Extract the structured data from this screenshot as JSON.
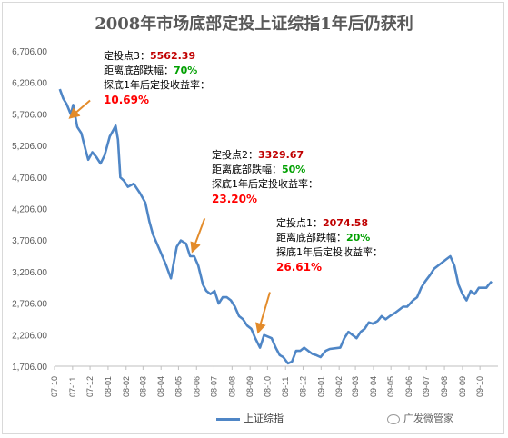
{
  "chart_data": {
    "type": "line",
    "title": "2008年市场底部定投上证综指1年后仍获利",
    "y_ticks": [
      "6,706.00",
      "6,206.00",
      "5,706.00",
      "5,206.00",
      "4,706.00",
      "4,206.00",
      "3,706.00",
      "3,206.00",
      "2,706.00",
      "2,206.00",
      "1,706.00"
    ],
    "x_ticks": [
      "07-10",
      "07-11",
      "07-12",
      "08-01",
      "08-02",
      "08-03",
      "08-04",
      "08-05",
      "08-06",
      "08-07",
      "08-08",
      "08-09",
      "08-10",
      "08-11",
      "08-12",
      "09-01",
      "09-02",
      "09-03",
      "09-04",
      "09-05",
      "09-06",
      "09-07",
      "09-08",
      "09-09",
      "09-10"
    ],
    "ylim": [
      1706,
      6706
    ],
    "grid": false,
    "legend_position": "bottom",
    "colors": {
      "line": "#4f86c6",
      "arrow": "#e38b2a",
      "price": "#c00000",
      "drop": "#00a000",
      "return": "#ff0000"
    },
    "series": [
      {
        "name": "上证综指",
        "x": [
          "2007-10-10",
          "2007-10-16",
          "2007-10-22",
          "2007-10-29",
          "2007-11-02",
          "2007-11-09",
          "2007-11-16",
          "2007-11-23",
          "2007-11-28",
          "2007-12-05",
          "2007-12-12",
          "2007-12-19",
          "2007-12-26",
          "2008-01-04",
          "2008-01-10",
          "2008-01-14",
          "2008-01-18",
          "2008-01-22",
          "2008-01-28",
          "2008-02-04",
          "2008-02-14",
          "2008-02-25",
          "2008-03-05",
          "2008-03-12",
          "2008-03-18",
          "2008-03-25",
          "2008-04-01",
          "2008-04-10",
          "2008-04-18",
          "2008-04-22",
          "2008-04-28",
          "2008-05-05",
          "2008-05-14",
          "2008-05-21",
          "2008-05-28",
          "2008-06-04",
          "2008-06-12",
          "2008-06-18",
          "2008-06-25",
          "2008-07-02",
          "2008-07-09",
          "2008-07-16",
          "2008-07-23",
          "2008-07-30",
          "2008-08-06",
          "2008-08-13",
          "2008-08-20",
          "2008-08-27",
          "2008-09-03",
          "2008-09-10",
          "2008-09-18",
          "2008-09-25",
          "2008-10-08",
          "2008-10-15",
          "2008-10-22",
          "2008-10-28",
          "2008-11-05",
          "2008-11-12",
          "2008-11-19",
          "2008-11-26",
          "2008-12-03",
          "2008-12-10",
          "2008-12-17",
          "2008-12-24",
          "2008-12-31",
          "2009-01-09",
          "2009-01-16",
          "2009-02-03",
          "2009-02-10",
          "2009-02-17",
          "2009-02-24",
          "2009-03-03",
          "2009-03-10",
          "2009-03-17",
          "2009-03-24",
          "2009-03-31",
          "2009-04-08",
          "2009-04-15",
          "2009-04-22",
          "2009-04-29",
          "2009-05-08",
          "2009-05-15",
          "2009-05-22",
          "2009-05-29",
          "2009-06-08",
          "2009-06-15",
          "2009-06-22",
          "2009-06-29",
          "2009-07-07",
          "2009-07-14",
          "2009-07-21",
          "2009-07-28",
          "2009-08-04",
          "2009-08-11",
          "2009-08-18",
          "2009-08-25",
          "2009-09-01",
          "2009-09-08",
          "2009-09-15",
          "2009-09-22",
          "2009-09-29",
          "2009-10-12",
          "2009-10-16",
          "2009-10-21"
        ],
        "y": [
          6100,
          5950,
          5860,
          5700,
          5850,
          5500,
          5400,
          5150,
          4980,
          5100,
          5020,
          4920,
          5050,
          5350,
          5450,
          5520,
          5300,
          4700,
          4650,
          4550,
          4600,
          4450,
          4300,
          4000,
          3800,
          3650,
          3500,
          3300,
          3100,
          3300,
          3600,
          3700,
          3650,
          3450,
          3450,
          3300,
          3000,
          2900,
          2850,
          2900,
          2700,
          2800,
          2800,
          2750,
          2650,
          2500,
          2450,
          2350,
          2300,
          2150,
          2000,
          2200,
          2150,
          2000,
          1880,
          1850,
          1750,
          1780,
          1950,
          1950,
          2000,
          1950,
          1900,
          1880,
          1850,
          1950,
          1980,
          2000,
          2150,
          2250,
          2200,
          2150,
          2250,
          2300,
          2400,
          2380,
          2420,
          2500,
          2450,
          2500,
          2550,
          2600,
          2650,
          2650,
          2750,
          2800,
          2950,
          3050,
          3150,
          3250,
          3300,
          3350,
          3400,
          3450,
          3300,
          3000,
          2850,
          2750,
          2900,
          2850,
          2950,
          2950,
          3000,
          3050
        ]
      }
    ],
    "annotations": [
      {
        "label": "定投点3：",
        "price": "5562.39",
        "drop_label": "距离底部跌幅：",
        "drop": "70%",
        "return_label": "探底1年后定投收益率：",
        "return": "10.69%"
      },
      {
        "label": "定投点2：",
        "price": "3329.67",
        "drop_label": "距离底部跌幅：",
        "drop": "50%",
        "return_label": "探底1年后定投收益率：",
        "return": "23.20%"
      },
      {
        "label": "定投点1：",
        "price": "2074.58",
        "drop_label": "距离底部跌幅：",
        "drop": "20%",
        "return_label": "探底1年后定投收益率：",
        "return": "26.61%"
      }
    ],
    "watermark": "广发微管家"
  }
}
